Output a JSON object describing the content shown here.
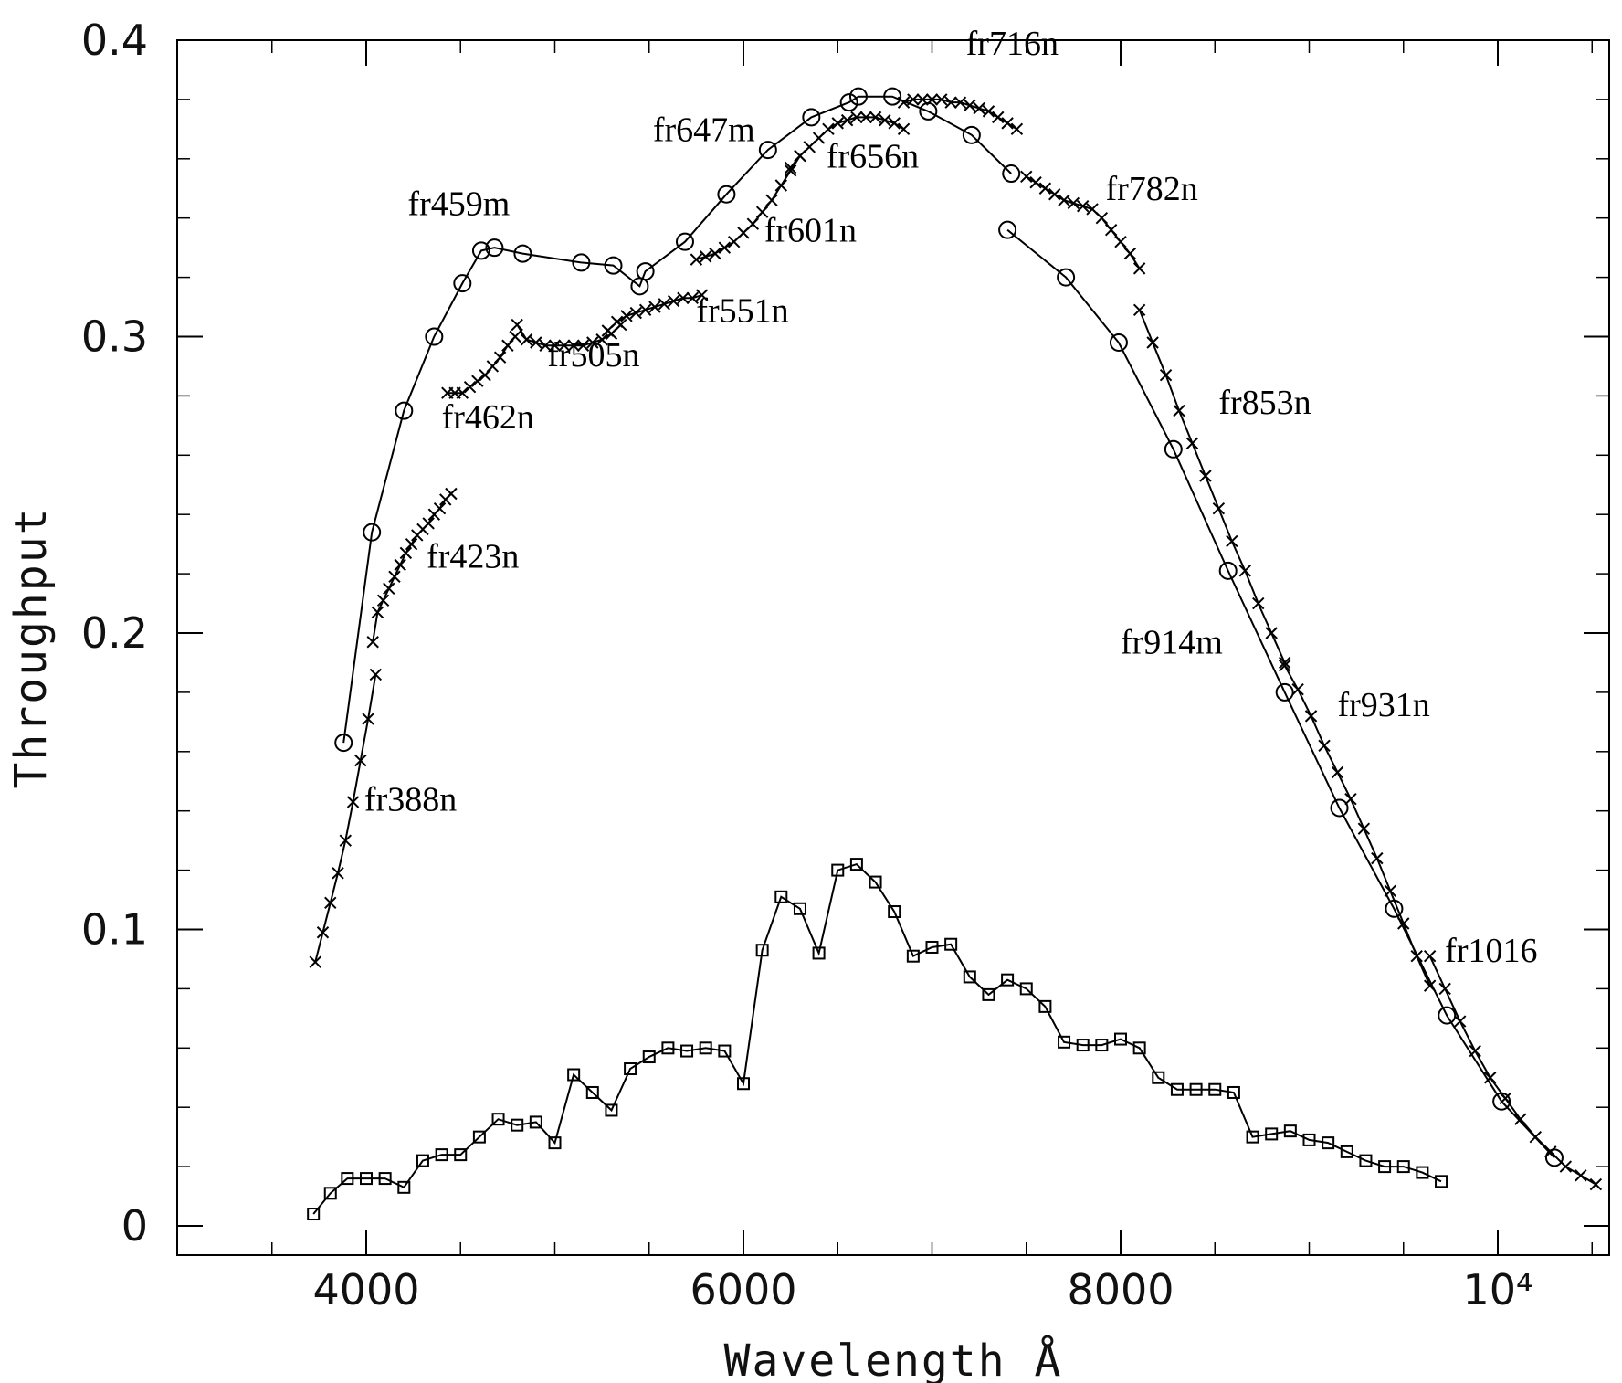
{
  "chart_data": {
    "type": "line",
    "title": "",
    "xlabel": "Wavelength Å",
    "ylabel": "Throughput",
    "xlim": [
      3000,
      10600
    ],
    "ylim": [
      -0.01,
      0.4
    ],
    "grid": false,
    "x_ticks": [
      {
        "value": 4000,
        "label": "4000"
      },
      {
        "value": 6000,
        "label": "6000"
      },
      {
        "value": 8000,
        "label": "8000"
      },
      {
        "value": 10000,
        "label": "10⁴"
      }
    ],
    "y_ticks": [
      {
        "value": 0,
        "label": "0"
      },
      {
        "value": 0.1,
        "label": "0.1"
      },
      {
        "value": 0.2,
        "label": "0.2"
      },
      {
        "value": 0.3,
        "label": "0.3"
      },
      {
        "value": 0.4,
        "label": "0.4"
      }
    ],
    "series": [
      {
        "marker": "x",
        "x": [
          3730,
          3770,
          3810,
          3850,
          3890,
          3930,
          3970,
          4010,
          4050
        ],
        "y": [
          0.089,
          0.099,
          0.109,
          0.119,
          0.13,
          0.143,
          0.157,
          0.171,
          0.186
        ]
      },
      {
        "marker": "x",
        "x": [
          4035,
          4060,
          4090,
          4120,
          4150,
          4180,
          4210,
          4240,
          4270,
          4300,
          4330,
          4360,
          4390,
          4420,
          4450
        ],
        "y": [
          0.197,
          0.207,
          0.211,
          0.215,
          0.219,
          0.223,
          0.227,
          0.23,
          0.233,
          0.235,
          0.237,
          0.24,
          0.242,
          0.245,
          0.247
        ]
      },
      {
        "marker": "x",
        "x": [
          4430,
          4470,
          4510,
          4550,
          4590,
          4630,
          4670,
          4710,
          4750,
          4790
        ],
        "y": [
          0.281,
          0.281,
          0.281,
          0.283,
          0.285,
          0.287,
          0.29,
          0.293,
          0.297,
          0.3
        ]
      },
      {
        "marker": "x",
        "x": [
          4800,
          4850,
          4900,
          4950,
          5000,
          5050,
          5100,
          5150,
          5200,
          5250,
          5300,
          5350
        ],
        "y": [
          0.304,
          0.299,
          0.298,
          0.297,
          0.297,
          0.297,
          0.297,
          0.297,
          0.298,
          0.299,
          0.301,
          0.304
        ]
      },
      {
        "marker": "x",
        "x": [
          5280,
          5330,
          5380,
          5430,
          5480,
          5530,
          5580,
          5630,
          5680,
          5730,
          5780
        ],
        "y": [
          0.302,
          0.305,
          0.307,
          0.308,
          0.309,
          0.31,
          0.311,
          0.312,
          0.313,
          0.313,
          0.314
        ]
      },
      {
        "marker": "x",
        "x": [
          5750,
          5800,
          5850,
          5900,
          5950,
          6000,
          6050,
          6100,
          6150,
          6200,
          6250,
          6300
        ],
        "y": [
          0.326,
          0.327,
          0.328,
          0.33,
          0.332,
          0.335,
          0.338,
          0.342,
          0.346,
          0.351,
          0.356,
          0.361
        ]
      },
      {
        "marker": "x",
        "x": [
          6250,
          6300,
          6350,
          6400,
          6450,
          6500,
          6550,
          6600,
          6650,
          6700,
          6750,
          6800,
          6850
        ],
        "y": [
          0.357,
          0.361,
          0.364,
          0.367,
          0.37,
          0.372,
          0.373,
          0.374,
          0.374,
          0.374,
          0.373,
          0.372,
          0.37
        ]
      },
      {
        "marker": "x",
        "x": [
          6850,
          6900,
          6950,
          7000,
          7050,
          7100,
          7150,
          7200,
          7250,
          7300,
          7350,
          7400,
          7450
        ],
        "y": [
          0.379,
          0.38,
          0.38,
          0.38,
          0.38,
          0.379,
          0.379,
          0.378,
          0.377,
          0.376,
          0.374,
          0.372,
          0.37
        ]
      },
      {
        "marker": "x",
        "x": [
          7500,
          7550,
          7600,
          7650,
          7700,
          7750,
          7800,
          7850,
          7900,
          7950,
          8000,
          8050,
          8100
        ],
        "y": [
          0.354,
          0.352,
          0.35,
          0.348,
          0.346,
          0.345,
          0.344,
          0.343,
          0.34,
          0.336,
          0.332,
          0.328,
          0.323
        ]
      },
      {
        "marker": "x",
        "x": [
          8100,
          8170,
          8240,
          8310,
          8380,
          8450,
          8520,
          8590,
          8660,
          8730,
          8800,
          8870
        ],
        "y": [
          0.309,
          0.298,
          0.287,
          0.275,
          0.264,
          0.253,
          0.242,
          0.231,
          0.221,
          0.21,
          0.2,
          0.19
        ]
      },
      {
        "marker": "x",
        "x": [
          8870,
          8940,
          9010,
          9080,
          9150,
          9220,
          9290,
          9360,
          9430,
          9500,
          9570,
          9640
        ],
        "y": [
          0.189,
          0.181,
          0.172,
          0.162,
          0.153,
          0.144,
          0.134,
          0.124,
          0.113,
          0.102,
          0.091,
          0.081
        ]
      },
      {
        "marker": "x",
        "x": [
          9640,
          9720,
          9800,
          9880,
          9960,
          10040,
          10120,
          10200,
          10280,
          10360,
          10440,
          10520
        ],
        "y": [
          0.091,
          0.08,
          0.069,
          0.059,
          0.05,
          0.043,
          0.036,
          0.03,
          0.025,
          0.02,
          0.017,
          0.014
        ]
      },
      {
        "marker": "circle",
        "x": [
          3880,
          4030,
          4200,
          4360,
          4510,
          4610,
          4680,
          4830,
          5140,
          5310,
          5450,
          5480,
          5690,
          5910,
          6130,
          6360,
          6560,
          6610,
          6790,
          6980,
          7210,
          7420
        ],
        "y": [
          0.163,
          0.234,
          0.275,
          0.3,
          0.318,
          0.329,
          0.33,
          0.328,
          0.325,
          0.324,
          0.317,
          0.322,
          0.332,
          0.348,
          0.363,
          0.374,
          0.379,
          0.381,
          0.381,
          0.376,
          0.368,
          0.355
        ]
      },
      {
        "marker": "circle",
        "x": [
          7400,
          7710,
          7990,
          8280,
          8570,
          8870,
          9160,
          9450,
          9730,
          10020,
          10300
        ],
        "y": [
          0.336,
          0.32,
          0.298,
          0.262,
          0.221,
          0.18,
          0.141,
          0.107,
          0.071,
          0.042,
          0.023
        ]
      },
      {
        "marker": "square",
        "x": [
          3720,
          3810,
          3900,
          4000,
          4100,
          4200,
          4300,
          4400,
          4500,
          4600,
          4700,
          4800,
          4900,
          5000,
          5100,
          5200,
          5300,
          5400,
          5500,
          5600,
          5700,
          5800,
          5900,
          6000,
          6100,
          6200,
          6300,
          6400,
          6500,
          6600,
          6700,
          6800,
          6900,
          7000,
          7100,
          7200,
          7300,
          7400,
          7500,
          7600,
          7700,
          7800,
          7900,
          8000,
          8100,
          8200,
          8300,
          8400,
          8500,
          8600,
          8700,
          8800,
          8900,
          9000,
          9100,
          9200,
          9300,
          9400,
          9500,
          9600,
          9700
        ],
        "y": [
          0.004,
          0.011,
          0.016,
          0.016,
          0.016,
          0.013,
          0.022,
          0.024,
          0.024,
          0.03,
          0.036,
          0.034,
          0.035,
          0.028,
          0.051,
          0.045,
          0.039,
          0.053,
          0.057,
          0.06,
          0.059,
          0.06,
          0.059,
          0.048,
          0.093,
          0.111,
          0.107,
          0.092,
          0.12,
          0.122,
          0.116,
          0.106,
          0.091,
          0.094,
          0.095,
          0.084,
          0.078,
          0.083,
          0.08,
          0.074,
          0.062,
          0.061,
          0.061,
          0.063,
          0.06,
          0.05,
          0.046,
          0.046,
          0.046,
          0.045,
          0.03,
          0.031,
          0.032,
          0.029,
          0.028,
          0.025,
          0.022,
          0.02,
          0.02,
          0.018,
          0.015
        ]
      }
    ],
    "annotations": [
      {
        "text": "fr388n",
        "x": 3990,
        "y": 0.14
      },
      {
        "text": "fr423n",
        "x": 4320,
        "y": 0.222
      },
      {
        "text": "fr459m",
        "x": 4220,
        "y": 0.341
      },
      {
        "text": "fr462n",
        "x": 4400,
        "y": 0.269
      },
      {
        "text": "fr505n",
        "x": 4960,
        "y": 0.29
      },
      {
        "text": "fr551n",
        "x": 5750,
        "y": 0.305
      },
      {
        "text": "fr601n",
        "x": 6110,
        "y": 0.332
      },
      {
        "text": "fr647m",
        "x": 5520,
        "y": 0.366
      },
      {
        "text": "fr656n",
        "x": 6440,
        "y": 0.357
      },
      {
        "text": "fr716n",
        "x": 7180,
        "y": 0.395
      },
      {
        "text": "fr782n",
        "x": 7920,
        "y": 0.346
      },
      {
        "text": "fr853n",
        "x": 8520,
        "y": 0.274
      },
      {
        "text": "fr914m",
        "x": 8000,
        "y": 0.193
      },
      {
        "text": "fr931n",
        "x": 9150,
        "y": 0.172
      },
      {
        "text": "fr1016",
        "x": 9720,
        "y": 0.089
      }
    ]
  }
}
